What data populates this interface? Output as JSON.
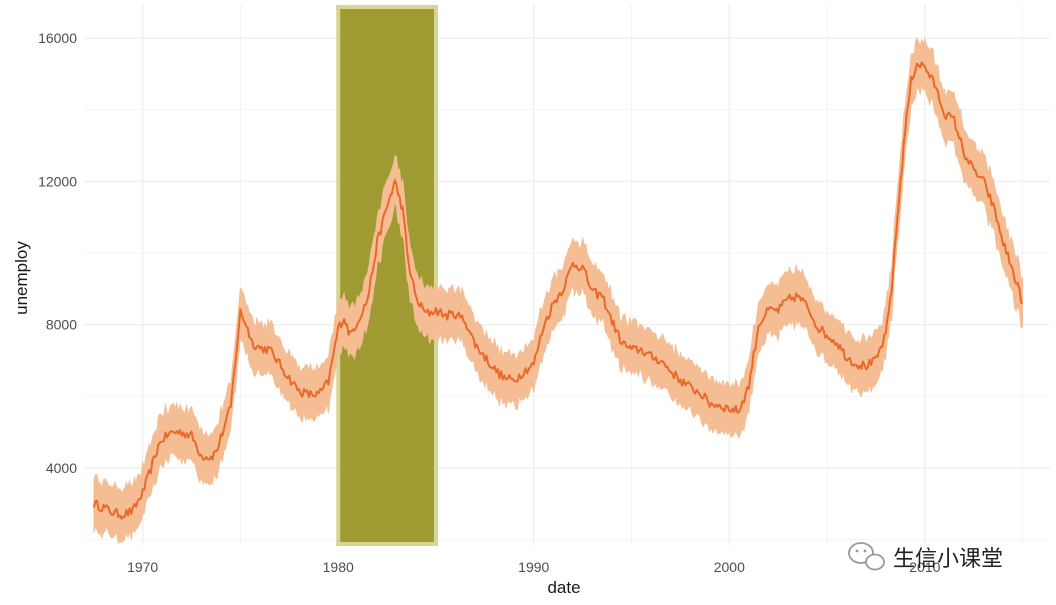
{
  "chart_data": {
    "type": "line",
    "xlabel": "date",
    "ylabel": "unemploy",
    "xlim": [
      1967.0,
      2016.4
    ],
    "ylim": [
      1850,
      16950
    ],
    "x_ticks": [
      1970,
      1980,
      1990,
      2000,
      2010
    ],
    "x_tick_labels": [
      "1970",
      "1980",
      "1990",
      "2000",
      "2010"
    ],
    "y_ticks": [
      4000,
      8000,
      12000,
      16000
    ],
    "y_tick_labels": [
      "4000",
      "8000",
      "12000",
      "16000"
    ],
    "grid": true,
    "ribbon_halfwidth": 700,
    "highlight": {
      "x_start": 1980.0,
      "x_end": 1985.0,
      "fill": "#a09a32",
      "border": "#d6d592"
    },
    "series": [
      {
        "line_color": "#e8692a",
        "ribbon_color": "#f5bd94",
        "x": [
          1967.5,
          1968.0,
          1968.5,
          1969.0,
          1969.5,
          1970.0,
          1970.5,
          1970.8,
          1971.0,
          1971.5,
          1972.0,
          1972.5,
          1973.0,
          1973.5,
          1973.8,
          1974.0,
          1974.5,
          1975.0,
          1975.3,
          1975.6,
          1976.0,
          1976.5,
          1977.0,
          1977.5,
          1978.0,
          1978.5,
          1979.0,
          1979.5,
          1980.0,
          1980.3,
          1980.6,
          1981.0,
          1981.5,
          1982.0,
          1982.5,
          1982.9,
          1983.3,
          1983.6,
          1984.0,
          1984.5,
          1985.0,
          1985.5,
          1986.0,
          1986.5,
          1987.0,
          1987.5,
          1988.0,
          1988.5,
          1989.0,
          1989.5,
          1990.0,
          1990.5,
          1991.0,
          1991.5,
          1992.0,
          1992.5,
          1993.0,
          1993.5,
          1994.0,
          1994.5,
          1995.0,
          1995.5,
          1996.0,
          1996.5,
          1997.0,
          1997.5,
          1998.0,
          1998.5,
          1999.0,
          1999.5,
          2000.0,
          2000.5,
          2001.0,
          2001.5,
          2002.0,
          2002.5,
          2003.0,
          2003.5,
          2004.0,
          2004.5,
          2005.0,
          2005.5,
          2006.0,
          2006.5,
          2007.0,
          2007.5,
          2008.0,
          2008.3,
          2008.6,
          2009.0,
          2009.3,
          2009.6,
          2010.0,
          2010.5,
          2011.0,
          2011.5,
          2012.0,
          2012.5,
          2013.0,
          2013.5,
          2014.0,
          2014.5,
          2015.0
        ],
        "y": [
          3000,
          2900,
          2750,
          2700,
          2800,
          3300,
          4100,
          4600,
          4800,
          5000,
          5000,
          4900,
          4350,
          4300,
          4500,
          4850,
          5700,
          8350,
          8000,
          7500,
          7350,
          7300,
          6900,
          6500,
          6150,
          6050,
          6050,
          6400,
          7900,
          8200,
          7700,
          8100,
          8700,
          10300,
          11300,
          12000,
          11200,
          9700,
          8700,
          8300,
          8400,
          8250,
          8300,
          8100,
          7450,
          7100,
          6750,
          6500,
          6450,
          6700,
          6900,
          7950,
          8600,
          9000,
          9700,
          9600,
          8900,
          8800,
          8100,
          7500,
          7300,
          7300,
          7100,
          7000,
          6700,
          6450,
          6250,
          6100,
          5800,
          5750,
          5650,
          5600,
          6300,
          8000,
          8400,
          8400,
          8700,
          8800,
          8500,
          7950,
          7700,
          7500,
          7100,
          6900,
          6850,
          7000,
          7700,
          9000,
          11000,
          13500,
          14800,
          15300,
          15200,
          14700,
          13900,
          13700,
          12800,
          12300,
          12000,
          11300,
          10300,
          9500,
          8600
        ]
      }
    ]
  },
  "watermark": {
    "text": "生信小课堂"
  }
}
